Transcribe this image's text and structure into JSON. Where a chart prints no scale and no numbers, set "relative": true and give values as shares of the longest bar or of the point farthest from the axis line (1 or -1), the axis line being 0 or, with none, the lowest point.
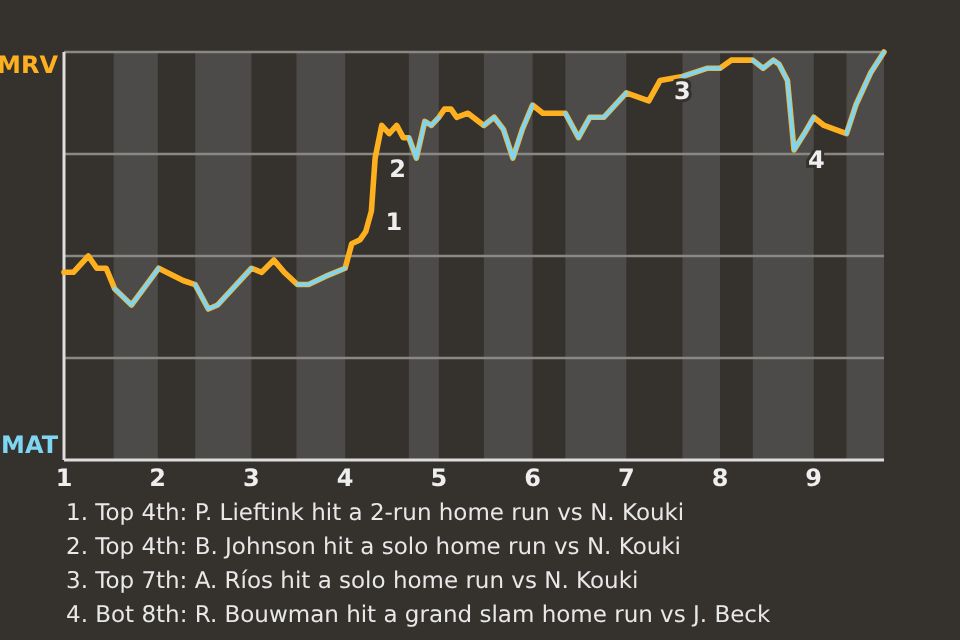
{
  "chart_data": {
    "type": "line",
    "relative": true,
    "x": [
      1,
      1.1,
      1.26,
      1.35,
      1.45,
      1.54,
      1.72,
      1.85,
      2.01,
      2.27,
      2.4,
      2.54,
      2.64,
      2.8,
      3,
      3.11,
      3.24,
      3.35,
      3.49,
      3.61,
      3.79,
      4,
      4.07,
      4.16,
      4.22,
      4.28,
      4.32,
      4.39,
      4.47,
      4.55,
      4.62,
      4.68,
      4.76,
      4.85,
      4.92,
      5,
      5.06,
      5.13,
      5.19,
      5.31,
      5.48,
      5.59,
      5.69,
      5.79,
      5.89,
      6,
      6.11,
      6.35,
      6.49,
      6.61,
      6.76,
      7,
      7.24,
      7.36,
      7.6,
      7.86,
      8,
      8.12,
      8.35,
      8.46,
      8.57,
      8.63,
      8.72,
      8.79,
      8.9,
      9,
      9.11,
      9.35,
      9.45,
      9.61,
      9.75
    ],
    "xlim": [
      1,
      9.75
    ],
    "xticks": [
      1,
      2,
      3,
      4,
      5,
      6,
      7,
      8,
      9
    ],
    "series": [
      {
        "name": "MRV",
        "color": "#ffb01f",
        "values": [
          0.46,
          0.46,
          0.5,
          0.47,
          0.47,
          0.42,
          0.38,
          0.42,
          0.47,
          0.44,
          0.43,
          0.37,
          0.38,
          0.42,
          0.47,
          0.46,
          0.49,
          0.46,
          0.43,
          0.43,
          0.45,
          0.47,
          0.53,
          0.54,
          0.56,
          0.61,
          0.74,
          0.82,
          0.8,
          0.82,
          0.79,
          0.79,
          0.74,
          0.83,
          0.82,
          0.84,
          0.86,
          0.86,
          0.84,
          0.85,
          0.82,
          0.84,
          0.81,
          0.74,
          0.81,
          0.87,
          0.85,
          0.85,
          0.79,
          0.84,
          0.84,
          0.9,
          0.88,
          0.93,
          0.94,
          0.96,
          0.96,
          0.98,
          0.98,
          0.96,
          0.98,
          0.97,
          0.93,
          0.76,
          0.8,
          0.84,
          0.82,
          0.8,
          0.87,
          0.95,
          1.0
        ]
      },
      {
        "name": "MAT",
        "color": "#7fd6f2",
        "values": [
          null,
          null,
          null,
          null,
          null,
          0.42,
          0.38,
          0.42,
          0.47,
          null,
          0.43,
          0.37,
          0.38,
          0.42,
          0.47,
          null,
          null,
          null,
          0.43,
          0.43,
          0.45,
          0.47,
          null,
          null,
          null,
          null,
          null,
          null,
          null,
          null,
          null,
          0.79,
          0.74,
          0.83,
          0.82,
          0.84,
          null,
          null,
          null,
          null,
          0.82,
          0.84,
          0.81,
          0.74,
          0.81,
          0.87,
          null,
          0.85,
          0.79,
          0.84,
          0.84,
          0.9,
          null,
          null,
          0.94,
          0.96,
          0.96,
          null,
          0.98,
          0.96,
          0.98,
          0.97,
          0.93,
          0.76,
          0.8,
          0.84,
          null,
          0.8,
          0.87,
          0.95,
          1.0
        ]
      }
    ],
    "grid": "y",
    "bands": [
      {
        "axis": "x",
        "from": 1.53,
        "to": 2,
        "color": "#4d4b49"
      },
      {
        "axis": "x",
        "from": 2.4,
        "to": 3,
        "color": "#4d4b49"
      },
      {
        "axis": "x",
        "from": 3.48,
        "to": 4,
        "color": "#4d4b49"
      },
      {
        "axis": "x",
        "from": 4.68,
        "to": 5,
        "color": "#4d4b49"
      },
      {
        "axis": "x",
        "from": 5.48,
        "to": 6,
        "color": "#4d4b49"
      },
      {
        "axis": "x",
        "from": 6.35,
        "to": 7,
        "color": "#4d4b49"
      },
      {
        "axis": "x",
        "from": 7.6,
        "to": 8,
        "color": "#4d4b49"
      },
      {
        "axis": "x",
        "from": 8.35,
        "to": 9,
        "color": "#4d4b49"
      },
      {
        "axis": "x",
        "from": 9.35,
        "to": 9.75,
        "color": "#4d4b49"
      }
    ],
    "annotations": [
      {
        "text": "1",
        "x": 4.28,
        "y": 0.61
      },
      {
        "text": "2",
        "x": 4.32,
        "y": 0.74
      },
      {
        "text": "3",
        "x": 7.36,
        "y": 0.93
      },
      {
        "text": "4",
        "x": 8.79,
        "y": 0.76
      },
      "1. Top 4th: P. Lieftink hit a 2-run home run vs N. Kouki",
      "2. Top 4th: B. Johnson hit a solo home run vs N. Kouki",
      "3. Top 7th: A. Ríos hit a solo home run vs N. Kouki",
      "4. Bot 8th: R. Bouwman hit a grand slam home run vs J. Beck"
    ]
  }
}
